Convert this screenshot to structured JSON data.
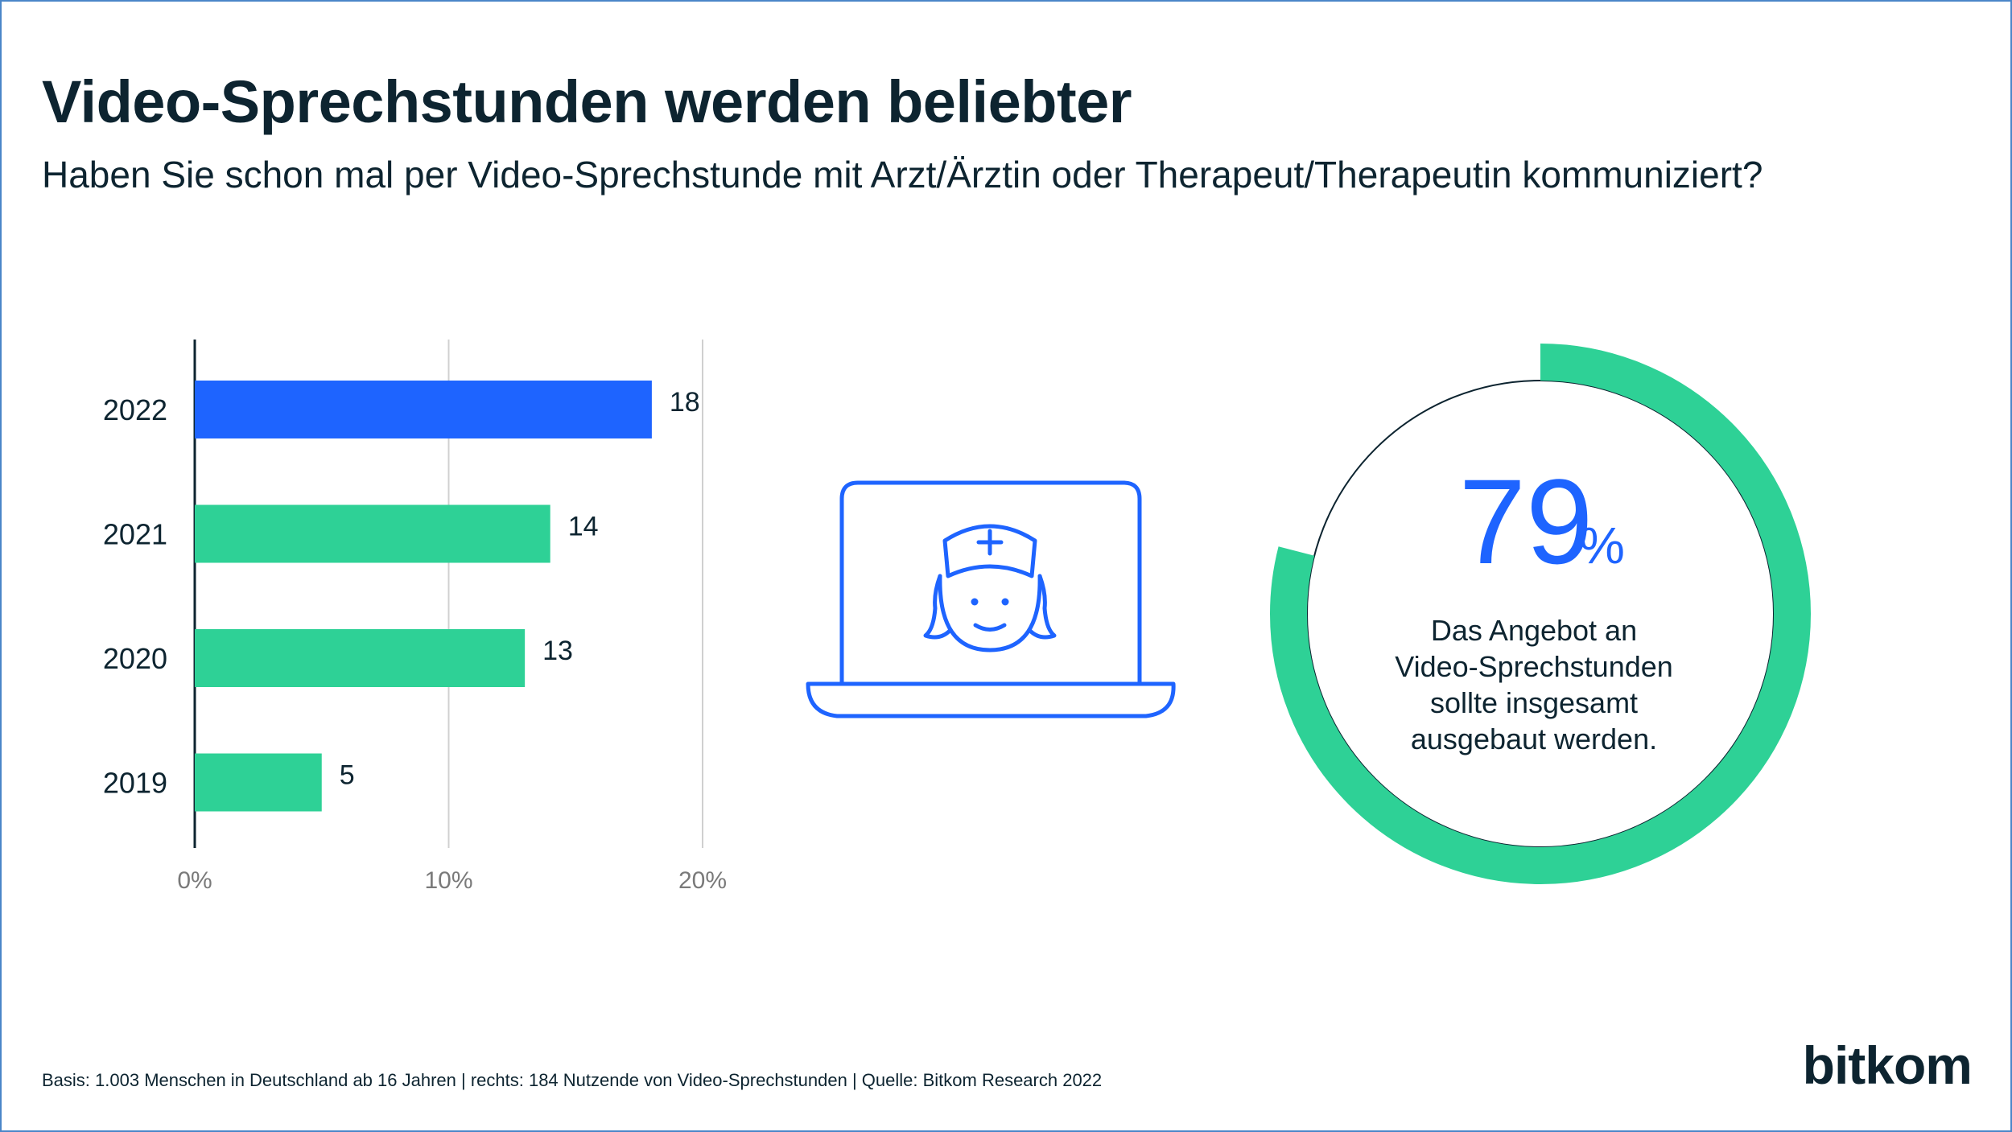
{
  "title": "Video-Sprechstunden werden beliebter",
  "subtitle": "Haben Sie schon mal per Video-Sprechstunde mit Arzt/Ärztin oder Therapeut/Therapeutin kommuniziert?",
  "chart_data": [
    {
      "type": "bar",
      "orientation": "horizontal",
      "categories": [
        "2022",
        "2021",
        "2020",
        "2019"
      ],
      "values": [
        18,
        14,
        13,
        5
      ],
      "value_labels": [
        "18",
        "14",
        "13",
        "5"
      ],
      "highlight_category": "2022",
      "xlim": [
        0,
        20
      ],
      "xticks": [
        0,
        10,
        20
      ],
      "xtick_labels": [
        "0%",
        "10%",
        "20%"
      ],
      "grid": true,
      "colors": {
        "highlight": "#1e64ff",
        "default": "#2ed196"
      }
    },
    {
      "type": "pie",
      "style": "donut",
      "value": 79,
      "value_label": "79",
      "unit": "%",
      "caption": [
        "Das Angebot an",
        "Video-Sprechstunden",
        "sollte insgesamt",
        "ausgebaut werden."
      ],
      "colors": {
        "ring": "#2ed196",
        "remainder": "#0d2430",
        "number": "#1e64ff"
      }
    }
  ],
  "icon": "laptop-nurse-icon",
  "footer": "Basis: 1.003 Menschen in Deutschland ab 16 Jahren | rechts: 184 Nutzende von Video-Sprechstunden | Quelle: Bitkom Research 2022",
  "logo": "bitkom",
  "colors": {
    "text": "#0d2430",
    "frame": "#4a86c8",
    "grid": "#d0d0d0",
    "axis_label": "#7a7a7a"
  }
}
